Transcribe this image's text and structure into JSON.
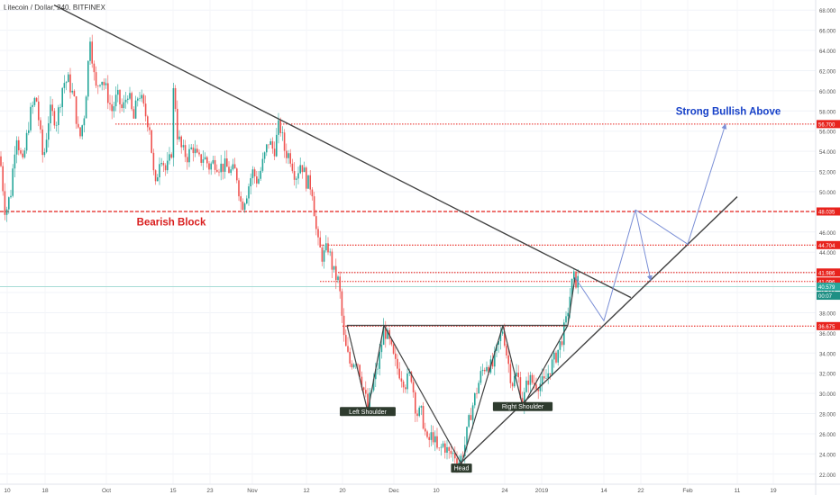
{
  "header": {
    "title": "Litecoin / Dollar, 240, BITFINEX"
  },
  "colors": {
    "up": "#26a69a",
    "down": "#ef5350",
    "level": "#e8231d",
    "trend": "#424242",
    "projection": "#7b8fd6",
    "price": "#26a69a"
  },
  "chart_data": {
    "type": "candlestick",
    "title": "Litecoin / Dollar, 240, BITFINEX",
    "x_ticks": [
      "10",
      "18",
      "Oct",
      "15",
      "23",
      "Nov",
      "12",
      "20",
      "Dec",
      "10",
      "24",
      "2019",
      "14",
      "22",
      "Feb",
      "11",
      "19"
    ],
    "y_ticks": [
      22,
      24,
      26,
      28,
      30,
      32,
      34,
      36,
      38,
      40,
      42,
      44,
      46,
      48,
      50,
      52,
      54,
      56,
      58,
      60,
      62,
      64,
      66,
      68
    ],
    "y_tick_labels": [
      "22.000",
      "24.000",
      "26.000",
      "28.000",
      "30.000",
      "32.000",
      "34.000",
      "36.000",
      "38.000",
      "40.000",
      "42.000",
      "44.000",
      "46.000",
      "48.000",
      "50.000",
      "52.000",
      "54.000",
      "56.000",
      "58.000",
      "60.000",
      "62.000",
      "64.000",
      "66.000",
      "68.000"
    ],
    "ylim": [
      21,
      69
    ],
    "price_path": [
      [
        0,
        53.5
      ],
      [
        6,
        47.8
      ],
      [
        12,
        50
      ],
      [
        18,
        56
      ],
      [
        25,
        52.5
      ],
      [
        33,
        57.5
      ],
      [
        40,
        59.5
      ],
      [
        48,
        53
      ],
      [
        55,
        58
      ],
      [
        63,
        57
      ],
      [
        70,
        60.8
      ],
      [
        76,
        61
      ],
      [
        82,
        59.2
      ],
      [
        88,
        55
      ],
      [
        94,
        58
      ],
      [
        100,
        65.5
      ],
      [
        106,
        60
      ],
      [
        112,
        61.5
      ],
      [
        118,
        60
      ],
      [
        124,
        58
      ],
      [
        130,
        59.5
      ],
      [
        136,
        58
      ],
      [
        142,
        60
      ],
      [
        148,
        57
      ],
      [
        154,
        60
      ],
      [
        160,
        58
      ],
      [
        166,
        56.5
      ],
      [
        172,
        50
      ],
      [
        178,
        54
      ],
      [
        184,
        52
      ],
      [
        190,
        53.5
      ],
      [
        193,
        61.5
      ],
      [
        196,
        56
      ],
      [
        202,
        54
      ],
      [
        208,
        53.5
      ],
      [
        214,
        54.5
      ],
      [
        220,
        53
      ],
      [
        226,
        53.5
      ],
      [
        232,
        52.5
      ],
      [
        238,
        53
      ],
      [
        244,
        52.5
      ],
      [
        250,
        52.5
      ],
      [
        256,
        52
      ],
      [
        262,
        52
      ],
      [
        268,
        48.5
      ],
      [
        274,
        50
      ],
      [
        280,
        52
      ],
      [
        286,
        51
      ],
      [
        292,
        53
      ],
      [
        298,
        55
      ],
      [
        304,
        54
      ],
      [
        310,
        56.8
      ],
      [
        316,
        54
      ],
      [
        322,
        53.5
      ],
      [
        328,
        51.5
      ],
      [
        334,
        53
      ],
      [
        340,
        51
      ],
      [
        346,
        50.5
      ],
      [
        350,
        47
      ],
      [
        352,
        45
      ],
      [
        358,
        43.5
      ],
      [
        364,
        44.5
      ],
      [
        370,
        42
      ],
      [
        376,
        41
      ],
      [
        382,
        35
      ],
      [
        388,
        33
      ],
      [
        396,
        33.5
      ],
      [
        402,
        31
      ],
      [
        408,
        28.5
      ],
      [
        414,
        31
      ],
      [
        420,
        33
      ],
      [
        426,
        36.5
      ],
      [
        432,
        35
      ],
      [
        438,
        33
      ],
      [
        444,
        32
      ],
      [
        450,
        31
      ],
      [
        456,
        32
      ],
      [
        462,
        28
      ],
      [
        468,
        28
      ],
      [
        474,
        25
      ],
      [
        480,
        26
      ],
      [
        486,
        24
      ],
      [
        492,
        25
      ],
      [
        498,
        24
      ],
      [
        504,
        24
      ],
      [
        510,
        23.2
      ],
      [
        516,
        25
      ],
      [
        522,
        28
      ],
      [
        528,
        30
      ],
      [
        534,
        32
      ],
      [
        540,
        33
      ],
      [
        546,
        32.5
      ],
      [
        552,
        34.5
      ],
      [
        558,
        36.5
      ],
      [
        562,
        34
      ],
      [
        568,
        31
      ],
      [
        574,
        32
      ],
      [
        580,
        29
      ],
      [
        586,
        31.5
      ],
      [
        592,
        31
      ],
      [
        598,
        31
      ],
      [
        604,
        31
      ],
      [
        610,
        32.5
      ],
      [
        616,
        33.5
      ],
      [
        622,
        35
      ],
      [
        628,
        37
      ],
      [
        632,
        39.5
      ],
      [
        636,
        41.5
      ],
      [
        640,
        41
      ],
      [
        643,
        41.5
      ]
    ],
    "levels": [
      {
        "label": "56.700",
        "value": 56.7,
        "x_start": 128,
        "style": "dotted"
      },
      {
        "label": "48.035",
        "value": 48.035,
        "x_start": 0,
        "style": "dashed"
      },
      {
        "label": "44.704",
        "value": 44.704,
        "x_start": 355,
        "style": "dotted"
      },
      {
        "label": "41.986",
        "value": 41.986,
        "x_start": 372,
        "style": "dotted"
      },
      {
        "label": "41.096",
        "value": 41.096,
        "x_start": 355,
        "style": "dotted"
      },
      {
        "label": "36.675",
        "value": 36.675,
        "x_start": 380,
        "style": "dotted"
      }
    ],
    "current_price": {
      "label": "40.579",
      "value": 40.579,
      "countdown": "00:07"
    },
    "annotations": [
      {
        "text": "Strong Bullish Above",
        "x": 808,
        "y": 58.0
      },
      {
        "text": "Bearish Block",
        "x": 190,
        "y": 47.0
      },
      {
        "text": "Left Shoulder",
        "x": 408,
        "y": 28.2,
        "boxed": true
      },
      {
        "text": "Head",
        "x": 512,
        "y": 22.6,
        "boxed": true
      },
      {
        "text": "Right Shoulder",
        "x": 580,
        "y": 28.7,
        "boxed": true
      }
    ],
    "trendlines": [
      {
        "p1": [
          60,
          68.5
        ],
        "p2": [
          700,
          39.5
        ]
      },
      {
        "p1": [
          510,
          23.0
        ],
        "p2": [
          818,
          49.5
        ]
      }
    ],
    "neckline": {
      "p1": [
        385,
        36.75
      ],
      "p2": [
        630,
        36.75
      ]
    },
    "pattern_lines": [
      [
        [
          385,
          36.75
        ],
        [
          408,
          28.2
        ]
      ],
      [
        [
          408,
          28.2
        ],
        [
          426,
          36.75
        ]
      ],
      [
        [
          426,
          36.75
        ],
        [
          512,
          23.0
        ]
      ],
      [
        [
          512,
          23.0
        ],
        [
          558,
          36.75
        ]
      ],
      [
        [
          558,
          36.75
        ],
        [
          580,
          28.7
        ]
      ],
      [
        [
          580,
          28.7
        ],
        [
          630,
          36.75
        ]
      ],
      [
        [
          630,
          36.75
        ],
        [
          638,
          41.5
        ]
      ]
    ],
    "projection_path": [
      [
        638,
        41.5
      ],
      [
        670,
        37.2
      ],
      [
        705,
        48.2
      ],
      [
        722,
        41.2
      ]
    ],
    "projection_path2": [
      [
        705,
        48.2
      ],
      [
        763,
        44.8
      ],
      [
        805,
        56.7
      ]
    ]
  }
}
